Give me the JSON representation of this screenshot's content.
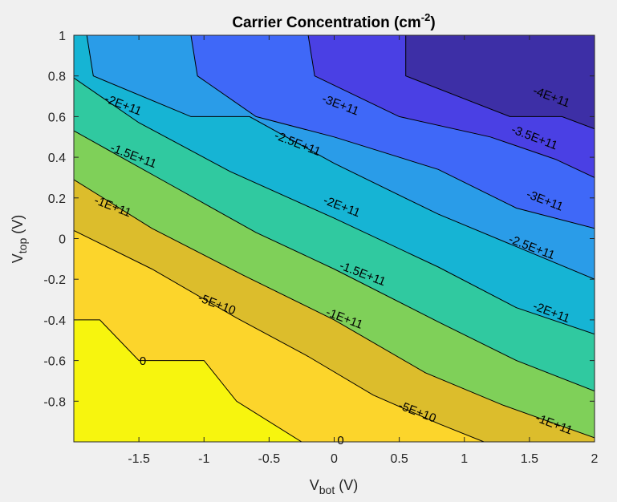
{
  "chart_data": {
    "type": "contourf",
    "title_main": "Carrier Concentration (cm",
    "title_sup": "-2",
    "title_end": ")",
    "xlabel_main": "V",
    "xlabel_sub": "bot",
    "xlabel_end": " (V)",
    "ylabel_main": "V",
    "ylabel_sub": "top",
    "ylabel_end": " (V)",
    "xlim": [
      -2,
      2
    ],
    "ylim": [
      -1,
      1
    ],
    "x_ticks": [
      -1.5,
      -1,
      -0.5,
      0,
      0.5,
      1,
      1.5,
      2
    ],
    "x_tick_labels": [
      "-1.5",
      "-1",
      "-0.5",
      "0",
      "0.5",
      "1",
      "1.5",
      "2"
    ],
    "y_ticks": [
      -0.8,
      -0.6,
      -0.4,
      -0.2,
      0,
      0.2,
      0.4,
      0.6,
      0.8,
      1
    ],
    "y_tick_labels": [
      "-0.8",
      "-0.6",
      "-0.4",
      "-0.2",
      "0",
      "0.2",
      "0.4",
      "0.6",
      "0.8",
      "1"
    ],
    "levels": [
      {
        "value": 0,
        "color": "#fcd52b"
      },
      {
        "value": -50000000000.0,
        "color": "#dcbd2c"
      },
      {
        "value": -100000000000.0,
        "color": "#7fd059"
      },
      {
        "value": -150000000000.0,
        "color": "#30c9a0"
      },
      {
        "value": -200000000000.0,
        "color": "#16b4d4"
      },
      {
        "value": -250000000000.0,
        "color": "#2a9ce8"
      },
      {
        "value": -300000000000.0,
        "color": "#3f68f8"
      },
      {
        "value": -350000000000.0,
        "color": "#4a40e4"
      },
      {
        "value": -400000000000.0,
        "color": "#3d2fa6"
      }
    ],
    "top_region_color": "#f7f50e",
    "contour_lines": [
      {
        "level": "0",
        "points": [
          [
            -2,
            -0.4
          ],
          [
            -1.8,
            -0.4
          ],
          [
            -1.5,
            -0.6
          ],
          [
            -1.0,
            -0.6
          ],
          [
            -0.75,
            -0.8
          ],
          [
            -0.25,
            -1.0
          ],
          [
            0.25,
            -1.0
          ]
        ]
      },
      {
        "level": "-5E+10",
        "points": [
          [
            -2,
            0.04
          ],
          [
            -1.4,
            -0.15
          ],
          [
            -0.75,
            -0.39
          ],
          [
            -0.2,
            -0.58
          ],
          [
            0.3,
            -0.77
          ],
          [
            0.8,
            -0.91
          ],
          [
            1.15,
            -1.0
          ]
        ]
      },
      {
        "level": "-1E+11",
        "points": [
          [
            -2,
            0.29
          ],
          [
            -1.4,
            0.05
          ],
          [
            -0.7,
            -0.18
          ],
          [
            0,
            -0.4
          ],
          [
            0.7,
            -0.66
          ],
          [
            1.3,
            -0.82
          ],
          [
            2,
            -0.98
          ]
        ]
      },
      {
        "level": "-1.5E+11",
        "points": [
          [
            -2,
            0.53
          ],
          [
            -1.3,
            0.28
          ],
          [
            -0.6,
            0.03
          ],
          [
            0,
            -0.15
          ],
          [
            0.8,
            -0.41
          ],
          [
            1.4,
            -0.6
          ],
          [
            2,
            -0.75
          ]
        ]
      },
      {
        "level": "-2E+11",
        "points": [
          [
            -2,
            0.79
          ],
          [
            -1.5,
            0.57
          ],
          [
            -0.8,
            0.33
          ],
          [
            0,
            0.1
          ],
          [
            0.8,
            -0.14
          ],
          [
            1.4,
            -0.34
          ],
          [
            2,
            -0.47
          ]
        ]
      },
      {
        "level": "-2.5E+11",
        "points": [
          [
            -1.9,
            1.0
          ],
          [
            -1.85,
            0.8
          ],
          [
            -1.1,
            0.6
          ],
          [
            -0.65,
            0.6
          ],
          [
            0,
            0.37
          ],
          [
            0.8,
            0.12
          ],
          [
            1.4,
            -0.04
          ],
          [
            2,
            -0.2
          ]
        ]
      },
      {
        "level": "-3E+11",
        "points": [
          [
            -1.1,
            1.0
          ],
          [
            -1.05,
            0.8
          ],
          [
            -0.6,
            0.6
          ],
          [
            0,
            0.5
          ],
          [
            0.8,
            0.34
          ],
          [
            1.4,
            0.15
          ],
          [
            2,
            0.05
          ]
        ]
      },
      {
        "level": "-3.5E+11",
        "points": [
          [
            -0.2,
            1.0
          ],
          [
            -0.15,
            0.8
          ],
          [
            0.5,
            0.6
          ],
          [
            1.2,
            0.5
          ],
          [
            1.7,
            0.39
          ],
          [
            2,
            0.3
          ]
        ]
      },
      {
        "level": "-4E+11",
        "points": [
          [
            0.55,
            1.0
          ],
          [
            0.55,
            0.8
          ],
          [
            1.35,
            0.6
          ],
          [
            1.75,
            0.6
          ],
          [
            2,
            0.54
          ]
        ]
      }
    ],
    "inline_labels": [
      {
        "text": "0",
        "x": -1.47,
        "y": -0.6,
        "angle": 0
      },
      {
        "text": "0",
        "x": 0.05,
        "y": -0.99,
        "angle": 0
      },
      {
        "text": "-5E+10",
        "x": -0.9,
        "y": -0.32,
        "angle": 21
      },
      {
        "text": "-5E+10",
        "x": 0.64,
        "y": -0.85,
        "angle": 21
      },
      {
        "text": "-1E+11",
        "x": -1.7,
        "y": 0.16,
        "angle": 21
      },
      {
        "text": "-1E+11",
        "x": 0.08,
        "y": -0.39,
        "angle": 21
      },
      {
        "text": "-1E+11",
        "x": 1.69,
        "y": -0.91,
        "angle": 21
      },
      {
        "text": "-1.5E+11",
        "x": -1.54,
        "y": 0.41,
        "angle": 21
      },
      {
        "text": "-1.5E+11",
        "x": 0.22,
        "y": -0.17,
        "angle": 21
      },
      {
        "text": "-2E+11",
        "x": -1.62,
        "y": 0.66,
        "angle": 21
      },
      {
        "text": "-2E+11",
        "x": 0.06,
        "y": 0.16,
        "angle": 21
      },
      {
        "text": "-2E+11",
        "x": 1.67,
        "y": -0.36,
        "angle": 21
      },
      {
        "text": "-2.5E+11",
        "x": -0.28,
        "y": 0.47,
        "angle": 21
      },
      {
        "text": "-2.5E+11",
        "x": 1.52,
        "y": -0.04,
        "angle": 21
      },
      {
        "text": "-3E+11",
        "x": 0.05,
        "y": 0.66,
        "angle": 21
      },
      {
        "text": "-3E+11",
        "x": 1.62,
        "y": 0.19,
        "angle": 21
      },
      {
        "text": "-3.5E+11",
        "x": 1.54,
        "y": 0.5,
        "angle": 21
      },
      {
        "text": "-4E+11",
        "x": 1.67,
        "y": 0.7,
        "angle": 21
      }
    ]
  }
}
